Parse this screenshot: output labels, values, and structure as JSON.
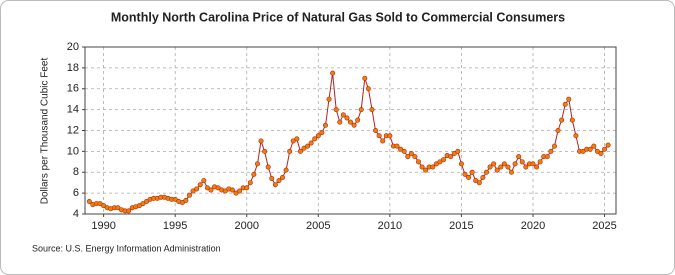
{
  "chart_data": {
    "type": "line",
    "title": "Monthly North Carolina Price of Natural Gas Sold to Commercial Consumers",
    "y_label": "Dollars per Thousand Cubic Feet",
    "source": "Source: U.S. Energy Information Administration",
    "line_color": "#b22222",
    "marker_color": "#f08000",
    "grid": true,
    "xlim": [
      1988.7,
      2025.8
    ],
    "xticks": [
      1990,
      1995,
      2000,
      2005,
      2010,
      2015,
      2020,
      2025
    ],
    "ylim": [
      4,
      20
    ],
    "yticks": [
      4,
      6,
      8,
      10,
      12,
      14,
      16,
      18,
      20
    ],
    "x": [
      1989,
      1989.25,
      1989.5,
      1989.75,
      1990,
      1990.25,
      1990.5,
      1990.75,
      1991,
      1991.25,
      1991.5,
      1991.75,
      1992,
      1992.25,
      1992.5,
      1992.75,
      1993,
      1993.25,
      1993.5,
      1993.75,
      1994,
      1994.25,
      1994.5,
      1994.75,
      1995,
      1995.25,
      1995.5,
      1995.75,
      1996,
      1996.25,
      1996.5,
      1996.75,
      1997,
      1997.25,
      1997.5,
      1997.75,
      1998,
      1998.25,
      1998.5,
      1998.75,
      1999,
      1999.25,
      1999.5,
      1999.75,
      2000,
      2000.25,
      2000.5,
      2000.75,
      2001,
      2001.25,
      2001.5,
      2001.75,
      2002,
      2002.25,
      2002.5,
      2002.75,
      2003,
      2003.25,
      2003.5,
      2003.75,
      2004,
      2004.25,
      2004.5,
      2004.75,
      2005,
      2005.25,
      2005.5,
      2005.75,
      2006,
      2006.25,
      2006.5,
      2006.75,
      2007,
      2007.25,
      2007.5,
      2007.75,
      2008,
      2008.25,
      2008.5,
      2008.75,
      2009,
      2009.25,
      2009.5,
      2009.75,
      2010,
      2010.25,
      2010.5,
      2010.75,
      2011,
      2011.25,
      2011.5,
      2011.75,
      2012,
      2012.25,
      2012.5,
      2012.75,
      2013,
      2013.25,
      2013.5,
      2013.75,
      2014,
      2014.25,
      2014.5,
      2014.75,
      2015,
      2015.25,
      2015.5,
      2015.75,
      2016,
      2016.25,
      2016.5,
      2016.75,
      2017,
      2017.25,
      2017.5,
      2017.75,
      2018,
      2018.25,
      2018.5,
      2018.75,
      2019,
      2019.25,
      2019.5,
      2019.75,
      2020,
      2020.25,
      2020.5,
      2020.75,
      2021,
      2021.25,
      2021.5,
      2021.75,
      2022,
      2022.25,
      2022.5,
      2022.75,
      2023,
      2023.25,
      2023.5,
      2023.75,
      2024,
      2024.25,
      2024.5,
      2024.75,
      2025,
      2025.25
    ],
    "values": [
      5.2,
      4.9,
      5.0,
      5.0,
      4.8,
      4.6,
      4.5,
      4.6,
      4.6,
      4.4,
      4.3,
      4.3,
      4.6,
      4.7,
      4.8,
      5.0,
      5.2,
      5.4,
      5.5,
      5.5,
      5.6,
      5.6,
      5.5,
      5.4,
      5.4,
      5.2,
      5.1,
      5.3,
      5.8,
      6.2,
      6.4,
      6.8,
      7.2,
      6.5,
      6.3,
      6.6,
      6.5,
      6.3,
      6.2,
      6.4,
      6.3,
      6.0,
      6.2,
      6.5,
      6.5,
      7.0,
      7.8,
      8.8,
      11.0,
      10.0,
      8.5,
      7.4,
      6.8,
      7.2,
      7.5,
      8.2,
      10.0,
      11.0,
      11.2,
      10.0,
      10.3,
      10.5,
      10.8,
      11.2,
      11.5,
      11.8,
      12.5,
      15.0,
      17.5,
      14.0,
      12.8,
      13.5,
      13.2,
      12.8,
      12.5,
      13.0,
      14.0,
      17.0,
      16.0,
      14.0,
      12.0,
      11.5,
      11.0,
      11.5,
      11.5,
      10.5,
      10.5,
      10.2,
      10.0,
      9.5,
      9.8,
      9.5,
      9.0,
      8.5,
      8.2,
      8.5,
      8.5,
      8.8,
      9.0,
      9.2,
      9.6,
      9.5,
      9.8,
      10.0,
      8.8,
      7.8,
      7.5,
      8.0,
      7.2,
      7.0,
      7.5,
      8.0,
      8.5,
      8.8,
      8.2,
      8.5,
      8.8,
      8.5,
      8.0,
      8.8,
      9.5,
      9.0,
      8.5,
      8.8,
      8.8,
      8.5,
      9.0,
      9.5,
      9.5,
      10.0,
      10.5,
      12.0,
      13.0,
      14.5,
      15.0,
      13.0,
      11.5,
      10.0,
      10.0,
      10.2,
      10.2,
      10.5,
      10.0,
      9.8,
      10.2,
      10.6
    ]
  }
}
